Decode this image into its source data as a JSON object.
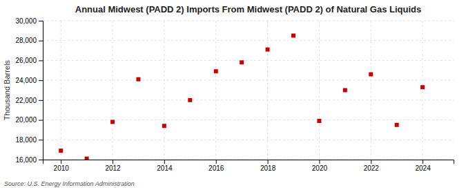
{
  "chart_data": {
    "type": "scatter",
    "title": "Annual Midwest (PADD 2) Imports From Midwest (PADD 2) of Natural Gas Liquids",
    "ylabel": "Thousand Barrels",
    "annotations": [
      "Source: U.S. Energy Information Administration"
    ],
    "x": [
      2010,
      2011,
      2012,
      2013,
      2014,
      2015,
      2016,
      2017,
      2018,
      2019,
      2020,
      2021,
      2022,
      2023,
      2024
    ],
    "values": [
      16900,
      16100,
      19800,
      24100,
      19400,
      22000,
      24900,
      25800,
      27100,
      28500,
      19900,
      23000,
      24600,
      19500,
      23300
    ],
    "color": "#cc0000",
    "marker": "square",
    "xlim": [
      2009.3,
      2025.2
    ],
    "xticks": [
      2010,
      2012,
      2014,
      2016,
      2018,
      2020,
      2022,
      2024
    ],
    "ylim": [
      16000,
      30000
    ],
    "yticks": [
      {
        "value": 16000,
        "label": "16,000"
      },
      {
        "value": 18000,
        "label": "18,000"
      },
      {
        "value": 20000,
        "label": "20,000"
      },
      {
        "value": 22000,
        "label": "22,000"
      },
      {
        "value": 24000,
        "label": "24,000"
      },
      {
        "value": 26000,
        "label": "26,000"
      },
      {
        "value": 28000,
        "label": "28,000"
      },
      {
        "value": 30000,
        "label": "30,000"
      }
    ],
    "grid": true
  }
}
